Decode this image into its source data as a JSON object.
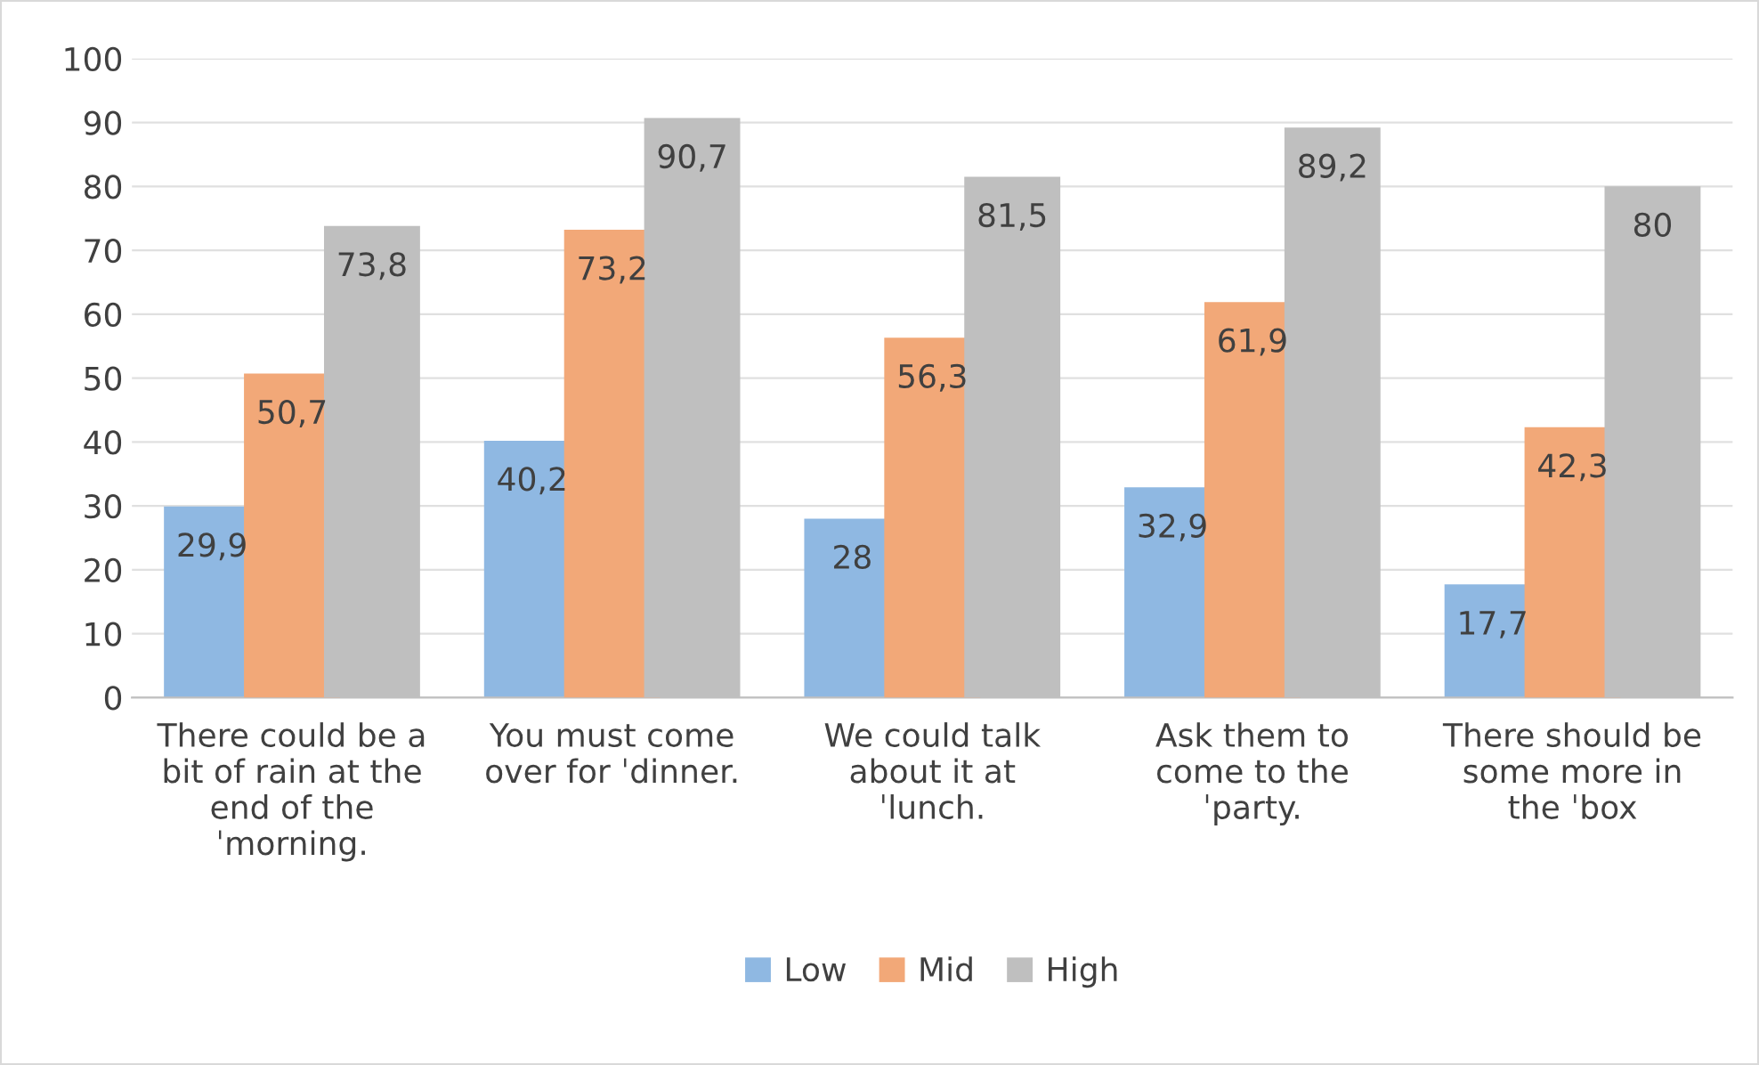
{
  "chart_data": {
    "type": "bar",
    "categories": [
      "There could be a\nbit of rain at the\nend of the\nˈmorning.",
      "You must come\nover for ˈdinner.",
      "We could talk\nabout it at\nˈlunch.",
      "Ask them to\ncome to the\nˈparty.",
      "There should be\nsome more in\nthe ˈbox"
    ],
    "series": [
      {
        "name": "Low",
        "color": "#8fb8e2",
        "values": [
          29.9,
          40.2,
          28,
          32.9,
          17.7
        ],
        "value_labels": [
          "29,9",
          "40,2",
          "28",
          "32,9",
          "17,7"
        ]
      },
      {
        "name": "Mid",
        "color": "#f2a878",
        "values": [
          50.7,
          73.2,
          56.3,
          61.9,
          42.3
        ],
        "value_labels": [
          "50,7",
          "73,2",
          "56,3",
          "61,9",
          "42,3"
        ]
      },
      {
        "name": "High",
        "color": "#bfbfbf",
        "values": [
          73.8,
          90.7,
          81.5,
          89.2,
          80
        ],
        "value_labels": [
          "73,8",
          "90,7",
          "81,5",
          "89,2",
          "80"
        ]
      }
    ],
    "ylim": [
      0,
      100
    ],
    "yticks": [
      0,
      10,
      20,
      30,
      40,
      50,
      60,
      70,
      80,
      90,
      100
    ],
    "grid": "y",
    "legend": "bottom"
  }
}
